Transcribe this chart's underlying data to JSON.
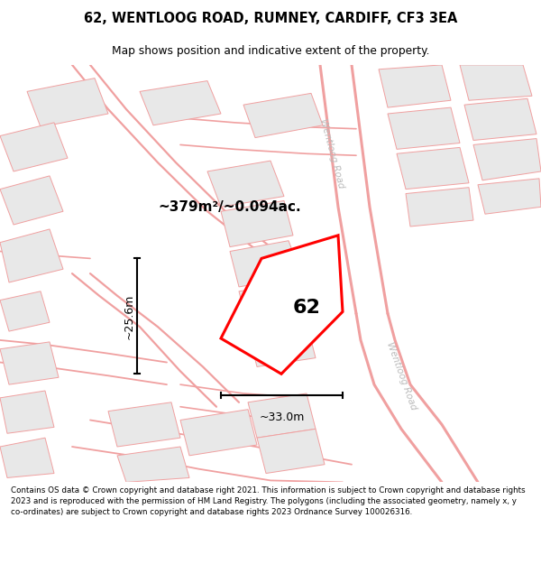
{
  "title_line1": "62, WENTLOOG ROAD, RUMNEY, CARDIFF, CF3 3EA",
  "title_line2": "Map shows position and indicative extent of the property.",
  "area_label": "~379m²/~0.094ac.",
  "height_label": "~25.6m",
  "width_label": "~33.0m",
  "number_label": "62",
  "road_label_top": "Wentloog Road",
  "road_label_bottom": "Wentloog Road",
  "copyright_text": "Contains OS data © Crown copyright and database right 2021. This information is subject to Crown copyright and database rights 2023 and is reproduced with the permission of HM Land Registry. The polygons (including the associated geometry, namely x, y co-ordinates) are subject to Crown copyright and database rights 2023 Ordnance Survey 100026316.",
  "background_color": "#ffffff",
  "map_bg_color": "#ffffff",
  "building_fill_color": "#e8e8e8",
  "building_edge_color": "#d0d0d0",
  "road_color": "#f0a0a0",
  "property_color": "#ff0000",
  "dim_color": "#000000",
  "road_label_color": "#bbbbbb",
  "fig_width": 6.0,
  "fig_height": 6.25,
  "title_fs": 10.5,
  "subtitle_fs": 8.8,
  "copy_fs": 6.3,
  "area_fs": 11.0,
  "num_fs": 16,
  "dim_fs": 9.0,
  "road_label_fs": 7.5
}
